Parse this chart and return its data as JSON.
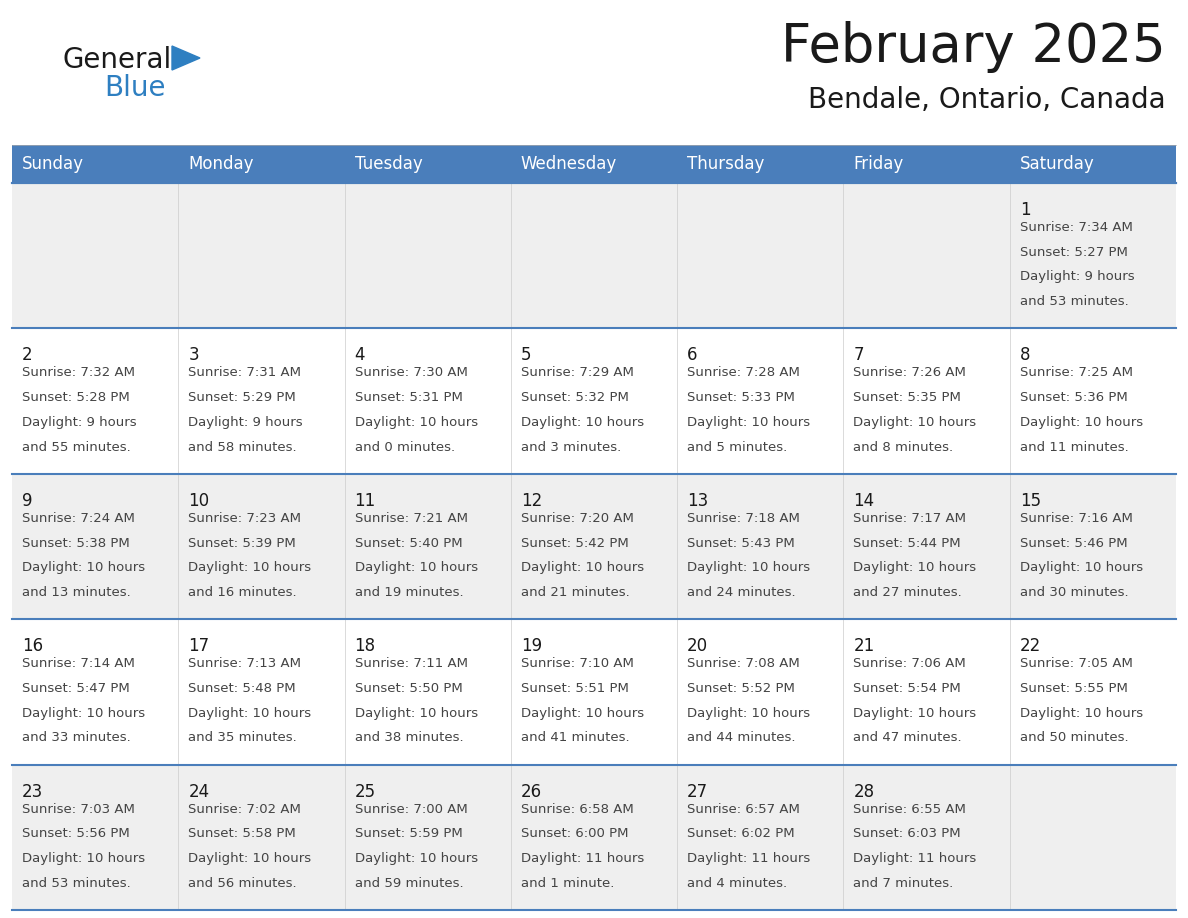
{
  "title": "February 2025",
  "subtitle": "Bendale, Ontario, Canada",
  "header_bg_color": "#4a7ebb",
  "header_text_color": "#ffffff",
  "row_colors": [
    "#efefef",
    "#ffffff",
    "#efefef",
    "#ffffff",
    "#efefef"
  ],
  "border_color": "#4a7ebb",
  "thin_border_color": "#4a7ebb",
  "day_names": [
    "Sunday",
    "Monday",
    "Tuesday",
    "Wednesday",
    "Thursday",
    "Friday",
    "Saturday"
  ],
  "title_color": "#1a1a1a",
  "subtitle_color": "#1a1a1a",
  "general_color": "#1a1a1a",
  "blue_color": "#2e7fc1",
  "triangle_color": "#2e7fc1",
  "cell_text_color": "#444444",
  "day_num_color": "#1a1a1a",
  "calendar": [
    [
      null,
      null,
      null,
      null,
      null,
      null,
      {
        "day": 1,
        "sunrise": "7:34 AM",
        "sunset": "5:27 PM",
        "daylight": "9 hours and 53 minutes."
      }
    ],
    [
      {
        "day": 2,
        "sunrise": "7:32 AM",
        "sunset": "5:28 PM",
        "daylight": "9 hours and 55 minutes."
      },
      {
        "day": 3,
        "sunrise": "7:31 AM",
        "sunset": "5:29 PM",
        "daylight": "9 hours and 58 minutes."
      },
      {
        "day": 4,
        "sunrise": "7:30 AM",
        "sunset": "5:31 PM",
        "daylight": "10 hours and 0 minutes."
      },
      {
        "day": 5,
        "sunrise": "7:29 AM",
        "sunset": "5:32 PM",
        "daylight": "10 hours and 3 minutes."
      },
      {
        "day": 6,
        "sunrise": "7:28 AM",
        "sunset": "5:33 PM",
        "daylight": "10 hours and 5 minutes."
      },
      {
        "day": 7,
        "sunrise": "7:26 AM",
        "sunset": "5:35 PM",
        "daylight": "10 hours and 8 minutes."
      },
      {
        "day": 8,
        "sunrise": "7:25 AM",
        "sunset": "5:36 PM",
        "daylight": "10 hours and 11 minutes."
      }
    ],
    [
      {
        "day": 9,
        "sunrise": "7:24 AM",
        "sunset": "5:38 PM",
        "daylight": "10 hours and 13 minutes."
      },
      {
        "day": 10,
        "sunrise": "7:23 AM",
        "sunset": "5:39 PM",
        "daylight": "10 hours and 16 minutes."
      },
      {
        "day": 11,
        "sunrise": "7:21 AM",
        "sunset": "5:40 PM",
        "daylight": "10 hours and 19 minutes."
      },
      {
        "day": 12,
        "sunrise": "7:20 AM",
        "sunset": "5:42 PM",
        "daylight": "10 hours and 21 minutes."
      },
      {
        "day": 13,
        "sunrise": "7:18 AM",
        "sunset": "5:43 PM",
        "daylight": "10 hours and 24 minutes."
      },
      {
        "day": 14,
        "sunrise": "7:17 AM",
        "sunset": "5:44 PM",
        "daylight": "10 hours and 27 minutes."
      },
      {
        "day": 15,
        "sunrise": "7:16 AM",
        "sunset": "5:46 PM",
        "daylight": "10 hours and 30 minutes."
      }
    ],
    [
      {
        "day": 16,
        "sunrise": "7:14 AM",
        "sunset": "5:47 PM",
        "daylight": "10 hours and 33 minutes."
      },
      {
        "day": 17,
        "sunrise": "7:13 AM",
        "sunset": "5:48 PM",
        "daylight": "10 hours and 35 minutes."
      },
      {
        "day": 18,
        "sunrise": "7:11 AM",
        "sunset": "5:50 PM",
        "daylight": "10 hours and 38 minutes."
      },
      {
        "day": 19,
        "sunrise": "7:10 AM",
        "sunset": "5:51 PM",
        "daylight": "10 hours and 41 minutes."
      },
      {
        "day": 20,
        "sunrise": "7:08 AM",
        "sunset": "5:52 PM",
        "daylight": "10 hours and 44 minutes."
      },
      {
        "day": 21,
        "sunrise": "7:06 AM",
        "sunset": "5:54 PM",
        "daylight": "10 hours and 47 minutes."
      },
      {
        "day": 22,
        "sunrise": "7:05 AM",
        "sunset": "5:55 PM",
        "daylight": "10 hours and 50 minutes."
      }
    ],
    [
      {
        "day": 23,
        "sunrise": "7:03 AM",
        "sunset": "5:56 PM",
        "daylight": "10 hours and 53 minutes."
      },
      {
        "day": 24,
        "sunrise": "7:02 AM",
        "sunset": "5:58 PM",
        "daylight": "10 hours and 56 minutes."
      },
      {
        "day": 25,
        "sunrise": "7:00 AM",
        "sunset": "5:59 PM",
        "daylight": "10 hours and 59 minutes."
      },
      {
        "day": 26,
        "sunrise": "6:58 AM",
        "sunset": "6:00 PM",
        "daylight": "11 hours and 1 minute."
      },
      {
        "day": 27,
        "sunrise": "6:57 AM",
        "sunset": "6:02 PM",
        "daylight": "11 hours and 4 minutes."
      },
      {
        "day": 28,
        "sunrise": "6:55 AM",
        "sunset": "6:03 PM",
        "daylight": "11 hours and 7 minutes."
      },
      null
    ]
  ]
}
